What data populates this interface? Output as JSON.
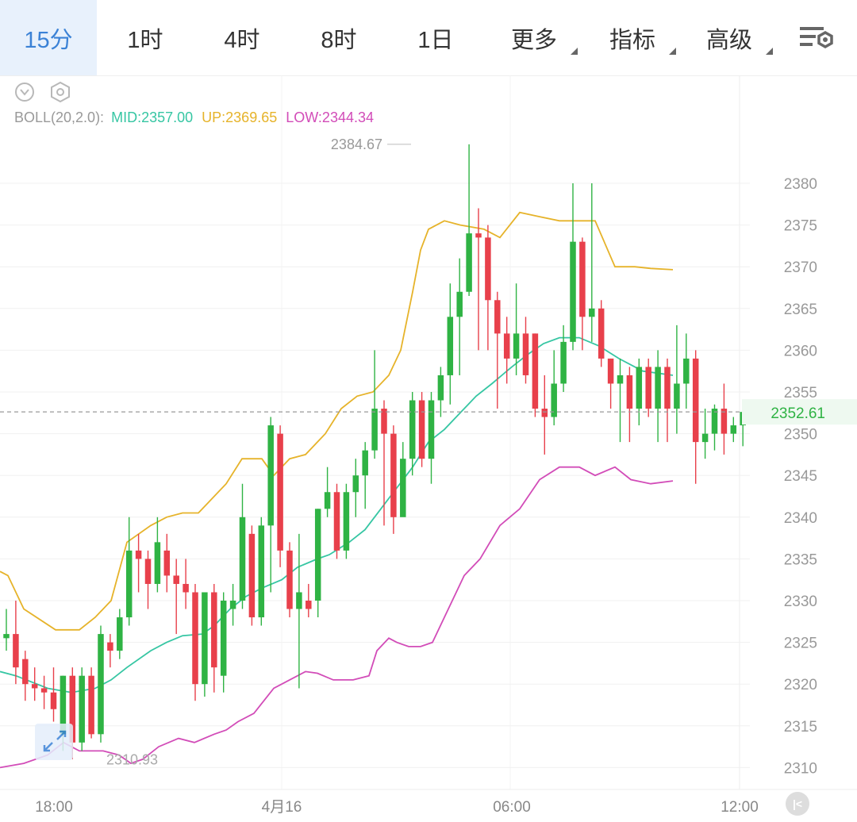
{
  "toolbar": {
    "tabs": [
      {
        "label": "15分",
        "active": true
      },
      {
        "label": "1时"
      },
      {
        "label": "4时"
      },
      {
        "label": "8时"
      },
      {
        "label": "1日"
      },
      {
        "label": "更多",
        "dropdown": true
      },
      {
        "label": "指标",
        "dropdown": true
      },
      {
        "label": "高级",
        "dropdown": true
      }
    ],
    "settings_icon": "chart-settings-icon"
  },
  "tool_icons": [
    "collapse-chevron-icon",
    "hexagon-settings-icon"
  ],
  "indicator": {
    "name": "BOLL(20,2.0):",
    "mid": "MID:2357.00",
    "up": "UP:2369.65",
    "low": "LOW:2344.34"
  },
  "colors": {
    "up": "#2fb344",
    "down": "#e8404b",
    "mid": "#36c6a3",
    "upper": "#e6b32a",
    "lower": "#d24cb8",
    "price_label": "#2fb344",
    "active_tab": "#3b82d6"
  },
  "chart_data": {
    "type": "candlestick",
    "y_ticks": [
      "2380",
      "2375",
      "2370",
      "2365",
      "2360",
      "2355",
      "2350",
      "2345",
      "2340",
      "2335",
      "2330",
      "2325",
      "2320",
      "2315",
      "2310"
    ],
    "x_ticks": [
      "18:00",
      "4月16",
      "06:00",
      "12:00"
    ],
    "last_price": "2352.61",
    "max_label": "2384.67",
    "min_label": "2310.93",
    "ylim": [
      2307.5,
      2389
    ],
    "grid": true,
    "candles": [
      [
        2325.5,
        2326,
        2329,
        2324
      ],
      [
        2326,
        2322,
        2330,
        2320
      ],
      [
        2323,
        2320,
        2324,
        2318
      ],
      [
        2320,
        2319.5,
        2322,
        2318
      ],
      [
        2319.5,
        2319,
        2321,
        2317
      ],
      [
        2319,
        2317,
        2322,
        2315.5
      ],
      [
        2314,
        2321,
        2321,
        2312
      ],
      [
        2321,
        2313,
        2322,
        2311
      ],
      [
        2313,
        2321,
        2322,
        2312
      ],
      [
        2321,
        2314,
        2322,
        2313.5
      ],
      [
        2314,
        2326,
        2327,
        2313
      ],
      [
        2325,
        2324,
        2326,
        2322
      ],
      [
        2324,
        2328,
        2329,
        2323
      ],
      [
        2328,
        2336,
        2340,
        2327
      ],
      [
        2336,
        2335,
        2338,
        2331
      ],
      [
        2335,
        2332,
        2336,
        2329
      ],
      [
        2332,
        2337,
        2340,
        2331
      ],
      [
        2336,
        2333,
        2338,
        2331
      ],
      [
        2333,
        2332,
        2335,
        2326
      ],
      [
        2332,
        2331,
        2335,
        2329
      ],
      [
        2331,
        2320,
        2332,
        2318
      ],
      [
        2320,
        2331,
        2331,
        2318.5
      ],
      [
        2331,
        2322,
        2332,
        2319
      ],
      [
        2321,
        2330,
        2331,
        2319
      ],
      [
        2329,
        2330,
        2332,
        2327
      ],
      [
        2330,
        2340,
        2344,
        2329
      ],
      [
        2338,
        2328,
        2339,
        2327
      ],
      [
        2328,
        2339,
        2340,
        2327
      ],
      [
        2339,
        2351,
        2352,
        2331
      ],
      [
        2350,
        2336,
        2351,
        2334
      ],
      [
        2336,
        2329,
        2337,
        2328
      ],
      [
        2329,
        2331,
        2338,
        2319.5
      ],
      [
        2330,
        2329,
        2332,
        2328
      ],
      [
        2330,
        2341,
        2341,
        2328
      ],
      [
        2341,
        2343,
        2346,
        2340
      ],
      [
        2343,
        2336,
        2344,
        2335
      ],
      [
        2336,
        2343,
        2344,
        2335
      ],
      [
        2343,
        2345,
        2347,
        2340
      ],
      [
        2345,
        2348,
        2349,
        2341
      ],
      [
        2348,
        2353,
        2360,
        2347
      ],
      [
        2353,
        2350,
        2354,
        2339
      ],
      [
        2350,
        2340,
        2351,
        2338
      ],
      [
        2340,
        2347,
        2349,
        2345
      ],
      [
        2347,
        2354,
        2355,
        2345
      ],
      [
        2354,
        2347,
        2355,
        2346
      ],
      [
        2347,
        2354,
        2355,
        2344
      ],
      [
        2354,
        2357,
        2358,
        2352
      ],
      [
        2357,
        2364,
        2368,
        2353.5
      ],
      [
        2364,
        2367,
        2371,
        2357
      ],
      [
        2367,
        2374,
        2384.67,
        2366.5
      ],
      [
        2374,
        2373.5,
        2377,
        2360
      ],
      [
        2373.5,
        2366,
        2375,
        2360
      ],
      [
        2366,
        2362,
        2367,
        2353
      ],
      [
        2362,
        2359,
        2364,
        2356
      ],
      [
        2359,
        2362,
        2368,
        2357
      ],
      [
        2362,
        2357,
        2364,
        2356
      ],
      [
        2362,
        2353,
        2362,
        2352
      ],
      [
        2353,
        2352,
        2357,
        2347.5
      ],
      [
        2352,
        2356,
        2360,
        2351
      ],
      [
        2356,
        2361,
        2363,
        2355
      ],
      [
        2361,
        2373,
        2380,
        2360
      ],
      [
        2373,
        2364,
        2373.5,
        2360
      ],
      [
        2364,
        2365,
        2380,
        2361
      ],
      [
        2365,
        2359,
        2366,
        2358
      ],
      [
        2359,
        2356,
        2359,
        2353
      ],
      [
        2356,
        2357,
        2359,
        2349
      ],
      [
        2357,
        2353,
        2358,
        2349
      ],
      [
        2353,
        2358,
        2359,
        2351
      ],
      [
        2358,
        2353,
        2359,
        2352
      ],
      [
        2353,
        2358,
        2360,
        2349
      ],
      [
        2358,
        2353,
        2359,
        2349
      ],
      [
        2353,
        2356,
        2363,
        2350
      ],
      [
        2356,
        2359,
        2362,
        2353
      ],
      [
        2359,
        2349,
        2360,
        2344
      ],
      [
        2349,
        2350,
        2353,
        2347
      ],
      [
        2350,
        2353,
        2353.5,
        2348
      ],
      [
        2353,
        2350,
        2356,
        2347.5
      ],
      [
        2350,
        2351,
        2352,
        2349
      ],
      [
        2351,
        2352.61,
        2353,
        2348.5
      ]
    ],
    "upper_band": [
      [
        0,
        2333.5
      ],
      [
        10,
        2333
      ],
      [
        30,
        2329
      ],
      [
        70,
        2326.5
      ],
      [
        100,
        2326.5
      ],
      [
        120,
        2328
      ],
      [
        140,
        2330
      ],
      [
        160,
        2337
      ],
      [
        190,
        2339
      ],
      [
        210,
        2340
      ],
      [
        230,
        2340.5
      ],
      [
        250,
        2340.5
      ],
      [
        265,
        2342
      ],
      [
        285,
        2344
      ],
      [
        305,
        2347
      ],
      [
        330,
        2347
      ],
      [
        345,
        2345
      ],
      [
        365,
        2347
      ],
      [
        385,
        2347.5
      ],
      [
        400,
        2349
      ],
      [
        410,
        2350
      ],
      [
        430,
        2353
      ],
      [
        450,
        2354.5
      ],
      [
        470,
        2355
      ],
      [
        490,
        2357
      ],
      [
        505,
        2360
      ],
      [
        520,
        2367
      ],
      [
        530,
        2372
      ],
      [
        540,
        2374.5
      ],
      [
        560,
        2375.5
      ],
      [
        580,
        2375
      ],
      [
        610,
        2374.5
      ],
      [
        630,
        2373.5
      ],
      [
        655,
        2376.5
      ],
      [
        680,
        2376
      ],
      [
        705,
        2375.5
      ],
      [
        750,
        2375.5
      ],
      [
        775,
        2370
      ],
      [
        800,
        2370
      ],
      [
        820,
        2369.8
      ],
      [
        848,
        2369.65
      ]
    ],
    "mid_band": [
      [
        0,
        2321.5
      ],
      [
        20,
        2321
      ],
      [
        60,
        2319.5
      ],
      [
        90,
        2319
      ],
      [
        120,
        2319.5
      ],
      [
        140,
        2320.5
      ],
      [
        160,
        2322
      ],
      [
        190,
        2324
      ],
      [
        210,
        2325
      ],
      [
        230,
        2325.8
      ],
      [
        255,
        2326
      ],
      [
        270,
        2327
      ],
      [
        290,
        2329
      ],
      [
        310,
        2330.5
      ],
      [
        330,
        2331.5
      ],
      [
        355,
        2332.5
      ],
      [
        375,
        2334
      ],
      [
        400,
        2335
      ],
      [
        415,
        2335.5
      ],
      [
        440,
        2337
      ],
      [
        460,
        2338.5
      ],
      [
        480,
        2341
      ],
      [
        500,
        2343.5
      ],
      [
        520,
        2346
      ],
      [
        540,
        2349
      ],
      [
        560,
        2350.5
      ],
      [
        580,
        2352.5
      ],
      [
        600,
        2354.5
      ],
      [
        620,
        2356
      ],
      [
        645,
        2358
      ],
      [
        665,
        2359.5
      ],
      [
        685,
        2360.8
      ],
      [
        705,
        2361.5
      ],
      [
        730,
        2361.5
      ],
      [
        755,
        2360.5
      ],
      [
        780,
        2359
      ],
      [
        810,
        2357.5
      ],
      [
        848,
        2357.0
      ]
    ],
    "lower_band": [
      [
        0,
        2310
      ],
      [
        30,
        2310.5
      ],
      [
        60,
        2311.5
      ],
      [
        80,
        2313
      ],
      [
        100,
        2312
      ],
      [
        130,
        2312
      ],
      [
        150,
        2311.5
      ],
      [
        165,
        2310.5
      ],
      [
        180,
        2311
      ],
      [
        200,
        2312.5
      ],
      [
        225,
        2313.5
      ],
      [
        245,
        2313
      ],
      [
        270,
        2314
      ],
      [
        285,
        2314.5
      ],
      [
        300,
        2315.5
      ],
      [
        320,
        2316.5
      ],
      [
        345,
        2319.5
      ],
      [
        365,
        2320.5
      ],
      [
        385,
        2321.5
      ],
      [
        400,
        2321.3
      ],
      [
        420,
        2320.5
      ],
      [
        445,
        2320.5
      ],
      [
        465,
        2321
      ],
      [
        475,
        2324
      ],
      [
        490,
        2325.5
      ],
      [
        500,
        2325
      ],
      [
        515,
        2324.5
      ],
      [
        530,
        2324.5
      ],
      [
        545,
        2325
      ],
      [
        565,
        2329
      ],
      [
        585,
        2333
      ],
      [
        605,
        2335
      ],
      [
        630,
        2339
      ],
      [
        655,
        2341
      ],
      [
        680,
        2344.5
      ],
      [
        705,
        2346
      ],
      [
        730,
        2346
      ],
      [
        750,
        2345
      ],
      [
        775,
        2346
      ],
      [
        795,
        2344.5
      ],
      [
        820,
        2344
      ],
      [
        848,
        2344.34
      ]
    ]
  }
}
